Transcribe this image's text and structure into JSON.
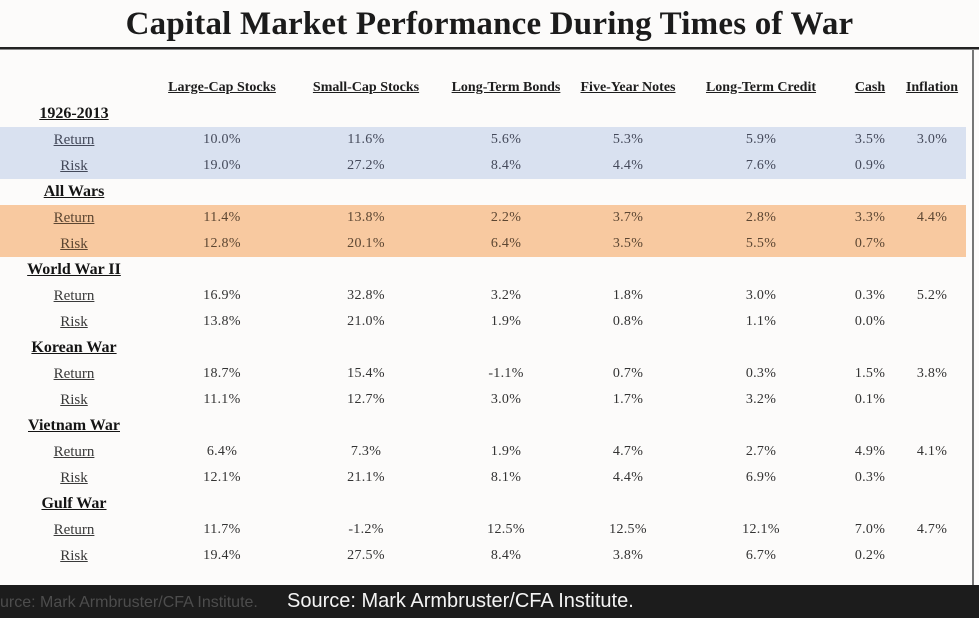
{
  "title": "Capital Market Performance During Times of War",
  "chart_data": {
    "type": "table",
    "title": "Capital Market Performance During Times of War",
    "columns": [
      "Large-Cap Stocks",
      "Small-Cap Stocks",
      "Long-Term Bonds",
      "Five-Year Notes",
      "Long-Term Credit",
      "Cash",
      "Inflation"
    ],
    "row_metrics": [
      "Return",
      "Risk"
    ],
    "sections": [
      {
        "name": "1926-2013",
        "highlight": "blue",
        "rows": [
          {
            "label": "Return",
            "values": [
              "10.0%",
              "11.6%",
              "5.6%",
              "5.3%",
              "5.9%",
              "3.5%",
              "3.0%"
            ]
          },
          {
            "label": "Risk",
            "values": [
              "19.0%",
              "27.2%",
              "8.4%",
              "4.4%",
              "7.6%",
              "0.9%",
              ""
            ]
          }
        ]
      },
      {
        "name": "All Wars",
        "highlight": "orange",
        "rows": [
          {
            "label": "Return",
            "values": [
              "11.4%",
              "13.8%",
              "2.2%",
              "3.7%",
              "2.8%",
              "3.3%",
              "4.4%"
            ]
          },
          {
            "label": "Risk",
            "values": [
              "12.8%",
              "20.1%",
              "6.4%",
              "3.5%",
              "5.5%",
              "0.7%",
              ""
            ]
          }
        ]
      },
      {
        "name": "World War II",
        "highlight": "none",
        "rows": [
          {
            "label": "Return",
            "values": [
              "16.9%",
              "32.8%",
              "3.2%",
              "1.8%",
              "3.0%",
              "0.3%",
              "5.2%"
            ]
          },
          {
            "label": "Risk",
            "values": [
              "13.8%",
              "21.0%",
              "1.9%",
              "0.8%",
              "1.1%",
              "0.0%",
              ""
            ]
          }
        ]
      },
      {
        "name": "Korean War",
        "highlight": "none",
        "rows": [
          {
            "label": "Return",
            "values": [
              "18.7%",
              "15.4%",
              "-1.1%",
              "0.7%",
              "0.3%",
              "1.5%",
              "3.8%"
            ]
          },
          {
            "label": "Risk",
            "values": [
              "11.1%",
              "12.7%",
              "3.0%",
              "1.7%",
              "3.2%",
              "0.1%",
              ""
            ]
          }
        ]
      },
      {
        "name": "Vietnam War",
        "highlight": "none",
        "rows": [
          {
            "label": "Return",
            "values": [
              "6.4%",
              "7.3%",
              "1.9%",
              "4.7%",
              "2.7%",
              "4.9%",
              "4.1%"
            ]
          },
          {
            "label": "Risk",
            "values": [
              "12.1%",
              "21.1%",
              "8.1%",
              "4.4%",
              "6.9%",
              "0.3%",
              ""
            ]
          }
        ]
      },
      {
        "name": "Gulf War",
        "highlight": "none",
        "rows": [
          {
            "label": "Return",
            "values": [
              "11.7%",
              "-1.2%",
              "12.5%",
              "12.5%",
              "12.1%",
              "7.0%",
              "4.7%"
            ]
          },
          {
            "label": "Risk",
            "values": [
              "19.4%",
              "27.5%",
              "8.4%",
              "3.8%",
              "6.7%",
              "0.2%",
              ""
            ]
          }
        ]
      }
    ]
  },
  "caption": {
    "text": "Source: Mark Armbruster/CFA Institute.",
    "ghost_text": "urce: Mark Armbruster/CFA Institute."
  },
  "colors": {
    "blue_band": "#d9e1f0",
    "orange_band": "#f8c9a0",
    "caption_bg": "#1c1c1c",
    "caption_text": "#f4f4f4",
    "caption_ghost": "#4d4d4d",
    "title_rule": "#232323",
    "slide_border": "#767676"
  }
}
